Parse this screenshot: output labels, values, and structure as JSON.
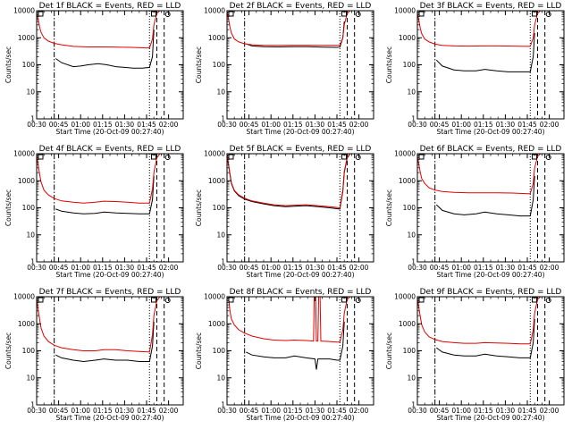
{
  "chart_data": {
    "type": "line",
    "grid": false,
    "yscale": "log",
    "ylim": [
      1,
      10000
    ],
    "xlim_minutes_after_midnight": [
      30,
      130
    ],
    "ylabel": "Counts/sec",
    "xlabel": "Start Time (20-Oct-09 00:27:40)",
    "x_ticks": [
      "00:30",
      "00:45",
      "01:00",
      "01:15",
      "01:30",
      "01:45",
      "02:00"
    ],
    "x_tick_minutes": [
      30,
      45,
      60,
      75,
      90,
      105,
      120
    ],
    "y_ticks": [
      "1",
      "10",
      "100",
      "1000",
      "10000"
    ],
    "y_tick_values": [
      1,
      10,
      100,
      1000,
      10000
    ],
    "vlines": [
      {
        "minute": 42,
        "style": "dashdot"
      },
      {
        "minute": 107,
        "style": "dotted"
      },
      {
        "minute": 112,
        "style": "dashed"
      },
      {
        "minute": 117,
        "style": "dashed"
      }
    ],
    "colors": {
      "events": "#000000",
      "lld": "#e00000"
    },
    "panels": [
      {
        "title": "Det 1f BLACK = Events, RED = LLD",
        "series": [
          {
            "name": "Events",
            "color": "#000000",
            "x": [
              43,
              47,
              55,
              60,
              65,
              72,
              78,
              84,
              90,
              96,
              102,
              107,
              109,
              110
            ],
            "y": [
              170,
              120,
              85,
              90,
              100,
              110,
              100,
              85,
              80,
              75,
              75,
              80,
              200,
              2000
            ]
          },
          {
            "name": "LLD",
            "color": "#e00000",
            "x": [
              30,
              31,
              32,
              33,
              35,
              38,
              42,
              47,
              55,
              65,
              75,
              85,
              95,
              105,
              107,
              109,
              110,
              112,
              114,
              116
            ],
            "y": [
              8000,
              5000,
              2500,
              1600,
              1000,
              750,
              620,
              550,
              480,
              460,
              460,
              450,
              440,
              420,
              420,
              900,
              3000,
              8000,
              10000,
              10000
            ]
          }
        ]
      },
      {
        "title": "Det 2f BLACK = Events, RED = LLD",
        "series": [
          {
            "name": "Events",
            "color": "#000000",
            "x": [
              43,
              47,
              55,
              65,
              75,
              85,
              95,
              105,
              107,
              109,
              110
            ],
            "y": [
              600,
              500,
              470,
              460,
              470,
              470,
              450,
              440,
              450,
              1000,
              4000
            ]
          },
          {
            "name": "LLD",
            "color": "#e00000",
            "x": [
              30,
              31,
              32,
              33,
              35,
              38,
              42,
              47,
              55,
              65,
              75,
              85,
              95,
              105,
              107,
              109,
              110,
              112,
              114,
              116
            ],
            "y": [
              9000,
              5000,
              2500,
              1500,
              900,
              700,
              600,
              550,
              520,
              520,
              530,
              530,
              520,
              520,
              520,
              1000,
              3000,
              8000,
              10000,
              10000
            ]
          }
        ]
      },
      {
        "title": "Det 3f BLACK = Events, RED = LLD",
        "series": [
          {
            "name": "Events",
            "color": "#000000",
            "x": [
              43,
              47,
              55,
              62,
              70,
              76,
              84,
              92,
              100,
              107,
              109,
              110
            ],
            "y": [
              150,
              90,
              65,
              60,
              60,
              68,
              60,
              55,
              55,
              55,
              200,
              1500
            ]
          },
          {
            "name": "LLD",
            "color": "#e00000",
            "x": [
              30,
              31,
              32,
              33,
              35,
              38,
              42,
              47,
              55,
              65,
              75,
              85,
              95,
              105,
              107,
              109,
              110,
              112,
              114,
              116
            ],
            "y": [
              8000,
              4500,
              2200,
              1400,
              900,
              700,
              580,
              520,
              500,
              490,
              500,
              500,
              490,
              480,
              480,
              1000,
              3000,
              8000,
              10000,
              10000
            ]
          }
        ]
      },
      {
        "title": "Det 4f BLACK = Events, RED = LLD",
        "series": [
          {
            "name": "Events",
            "color": "#000000",
            "x": [
              43,
              47,
              55,
              62,
              70,
              76,
              84,
              92,
              100,
              107,
              109,
              110
            ],
            "y": [
              90,
              75,
              65,
              60,
              62,
              70,
              65,
              62,
              60,
              60,
              200,
              1500
            ]
          },
          {
            "name": "LLD",
            "color": "#e00000",
            "x": [
              30,
              31,
              32,
              33,
              35,
              38,
              42,
              47,
              55,
              62,
              70,
              76,
              84,
              92,
              100,
              107,
              109,
              110,
              112,
              114,
              116
            ],
            "y": [
              9000,
              4000,
              1800,
              900,
              450,
              300,
              220,
              180,
              160,
              150,
              160,
              175,
              170,
              160,
              150,
              150,
              500,
              2000,
              7000,
              10000,
              10000
            ]
          }
        ]
      },
      {
        "title": "Det 5f BLACK = Events, RED = LLD",
        "series": [
          {
            "name": "Events",
            "color": "#000000",
            "x": [
              30,
              31,
              32,
              33,
              35,
              38,
              42,
              47,
              55,
              62,
              70,
              76,
              84,
              92,
              100,
              107,
              109,
              110,
              112,
              114,
              116
            ],
            "y": [
              9000,
              4000,
              1700,
              800,
              420,
              280,
              210,
              170,
              140,
              120,
              110,
              115,
              120,
              110,
              100,
              90,
              400,
              2000,
              7000,
              10000,
              10000
            ]
          },
          {
            "name": "LLD",
            "color": "#e00000",
            "x": [
              30,
              31,
              32,
              33,
              35,
              38,
              42,
              47,
              55,
              62,
              70,
              76,
              84,
              92,
              100,
              107,
              109,
              110,
              112,
              114,
              116
            ],
            "y": [
              9500,
              4300,
              1800,
              850,
              440,
              300,
              225,
              180,
              150,
              130,
              120,
              125,
              130,
              120,
              110,
              100,
              450,
              2200,
              7500,
              10000,
              10000
            ]
          }
        ]
      },
      {
        "title": "Det 6f BLACK = Events, RED = LLD",
        "series": [
          {
            "name": "Events",
            "color": "#000000",
            "x": [
              43,
              47,
              55,
              62,
              70,
              76,
              84,
              92,
              100,
              107,
              109,
              110
            ],
            "y": [
              130,
              80,
              60,
              55,
              60,
              70,
              60,
              55,
              50,
              50,
              200,
              1500
            ]
          },
          {
            "name": "LLD",
            "color": "#e00000",
            "x": [
              30,
              31,
              32,
              33,
              35,
              38,
              42,
              47,
              55,
              65,
              75,
              85,
              95,
              105,
              107,
              109,
              110,
              112,
              114,
              116
            ],
            "y": [
              8000,
              4000,
              2000,
              1200,
              800,
              550,
              450,
              400,
              370,
              360,
              360,
              360,
              350,
              330,
              330,
              800,
              3000,
              8000,
              10000,
              10000
            ]
          }
        ]
      },
      {
        "title": "Det 7f BLACK = Events, RED = LLD",
        "series": [
          {
            "name": "Events",
            "color": "#000000",
            "x": [
              43,
              47,
              55,
              62,
              70,
              76,
              84,
              92,
              100,
              107,
              109,
              110
            ],
            "y": [
              70,
              55,
              45,
              40,
              45,
              50,
              45,
              45,
              40,
              40,
              150,
              1200
            ]
          },
          {
            "name": "LLD",
            "color": "#e00000",
            "x": [
              30,
              31,
              32,
              33,
              35,
              38,
              42,
              47,
              55,
              62,
              70,
              76,
              84,
              92,
              100,
              107,
              109,
              110,
              112,
              114,
              116
            ],
            "y": [
              9000,
              3500,
              1500,
              700,
              350,
              220,
              160,
              130,
              110,
              100,
              100,
              110,
              110,
              100,
              95,
              90,
              400,
              2000,
              7000,
              10000,
              10000
            ]
          }
        ]
      },
      {
        "title": "Det 8f BLACK = Events, RED = LLD",
        "series": [
          {
            "name": "Events",
            "color": "#000000",
            "x": [
              43,
              47,
              55,
              62,
              70,
              76,
              84,
              90,
              91,
              92,
              95,
              100,
              105,
              107,
              109,
              110
            ],
            "y": [
              90,
              70,
              60,
              55,
              55,
              65,
              55,
              50,
              20,
              50,
              50,
              50,
              45,
              45,
              150,
              1200
            ]
          },
          {
            "name": "LLD",
            "color": "#e00000",
            "x": [
              30,
              31,
              32,
              33,
              35,
              38,
              42,
              47,
              55,
              62,
              70,
              76,
              84,
              89,
              89.5,
              90.5,
              91,
              92,
              92.5,
              93.5,
              94,
              100,
              105,
              107,
              109,
              110,
              112,
              114,
              116
            ],
            "y": [
              10000,
              10000,
              3000,
              1500,
              900,
              600,
              450,
              350,
              280,
              250,
              240,
              250,
              240,
              230,
              10000,
              10000,
              230,
              230,
              10000,
              10000,
              230,
              220,
              210,
              210,
              600,
              2500,
              8000,
              10000,
              10000
            ]
          }
        ]
      },
      {
        "title": "Det 9f BLACK = Events, RED = LLD",
        "series": [
          {
            "name": "Events",
            "color": "#000000",
            "x": [
              43,
              47,
              55,
              62,
              70,
              76,
              84,
              92,
              100,
              107,
              109,
              110
            ],
            "y": [
              130,
              90,
              70,
              65,
              65,
              75,
              65,
              60,
              55,
              55,
              200,
              1500
            ]
          },
          {
            "name": "LLD",
            "color": "#e00000",
            "x": [
              30,
              31,
              32,
              33,
              35,
              38,
              42,
              47,
              55,
              62,
              70,
              76,
              84,
              92,
              100,
              107,
              109,
              110,
              112,
              114,
              116
            ],
            "y": [
              9000,
              4000,
              1800,
              900,
              500,
              330,
              260,
              220,
              200,
              190,
              190,
              200,
              195,
              190,
              180,
              180,
              600,
              2500,
              8000,
              10000,
              10000
            ]
          }
        ]
      }
    ]
  }
}
